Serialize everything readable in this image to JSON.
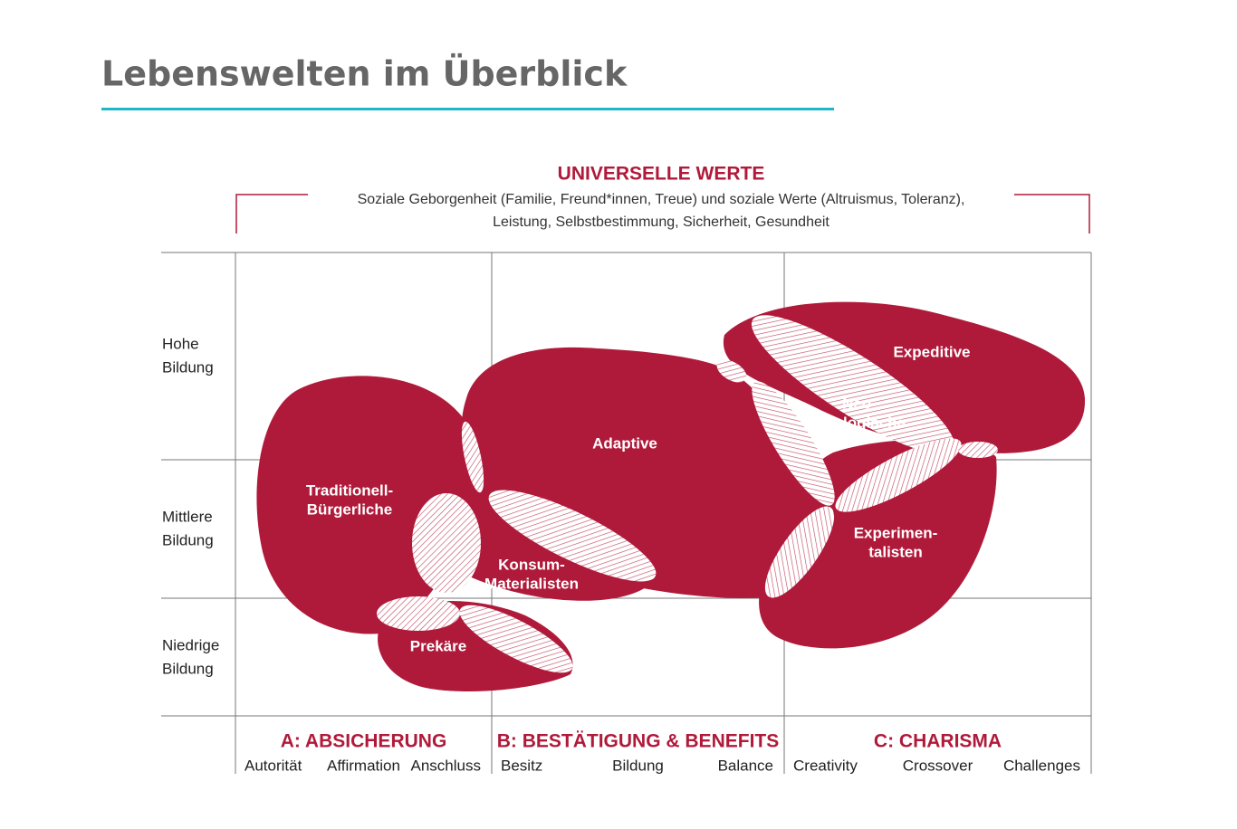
{
  "title": "Lebenswelten im Überblick",
  "header": {
    "title": "UNIVERSELLE WERTE",
    "lines": [
      "Soziale Geborgenheit (Familie, Freund*innen, Treue) und soziale Werte (Altruismus, Toleranz),",
      "Leistung, Selbstbestimmung, Sicherheit, Gesundheit"
    ]
  },
  "rows": [
    {
      "lines": [
        "Hohe",
        "Bildung"
      ]
    },
    {
      "lines": [
        "Mittlere",
        "Bildung"
      ]
    },
    {
      "lines": [
        "Niedrige",
        "Bildung"
      ]
    }
  ],
  "milieus": [
    {
      "lines": [
        "Traditionell-",
        "Bürgerliche"
      ]
    },
    {
      "lines": [
        "Adaptive"
      ]
    },
    {
      "lines": [
        "Expeditive"
      ]
    },
    {
      "lines": [
        "Neo-",
        "Ökologische"
      ]
    },
    {
      "lines": [
        "Experimen-",
        "talisten"
      ]
    },
    {
      "lines": [
        "Konsum-",
        "Materialisten"
      ]
    },
    {
      "lines": [
        "Prekäre"
      ]
    }
  ],
  "columns": [
    {
      "title": "A: ABSICHERUNG",
      "values": [
        "Autorität",
        "Affirmation",
        "Anschluss"
      ]
    },
    {
      "title": "B: BESTÄTIGUNG & BENEFITS",
      "values": [
        "Besitz",
        "Bildung",
        "Balance"
      ]
    },
    {
      "title": "C: CHARISMA",
      "values": [
        "Creativity",
        "Crossover",
        "Challenges"
      ]
    }
  ]
}
